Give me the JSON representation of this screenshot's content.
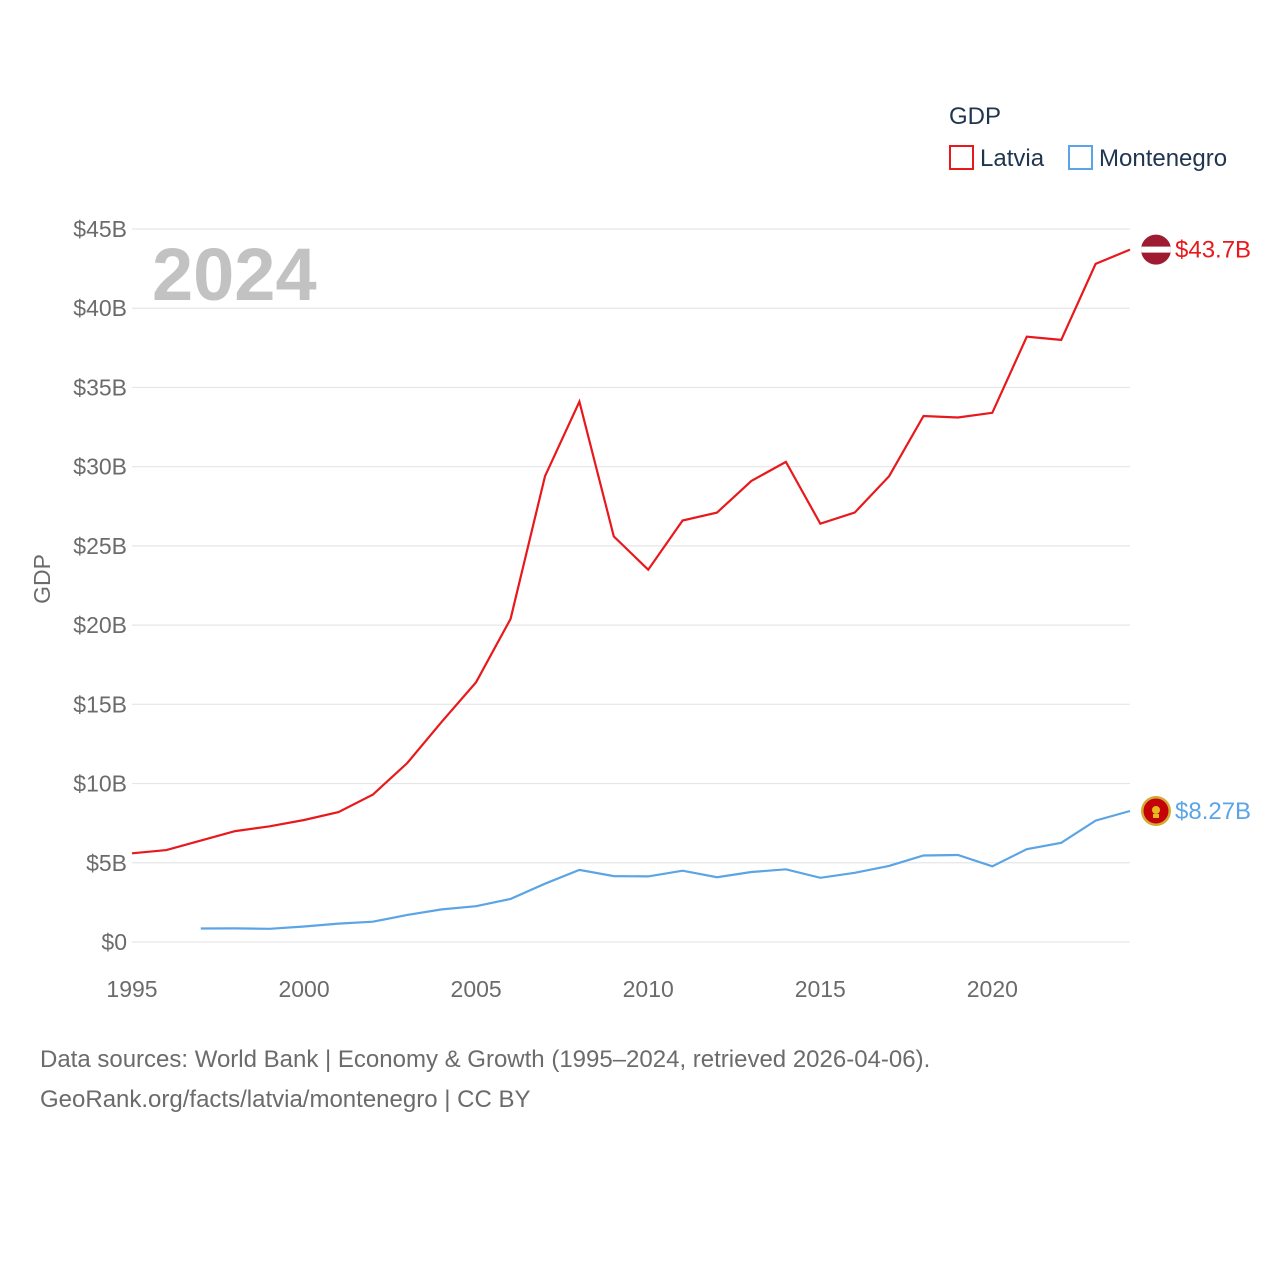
{
  "chart_data": {
    "type": "line",
    "year_label": "2024",
    "ylabel": "GDP",
    "legend_title": "GDP",
    "ylim": [
      0,
      45
    ],
    "xlim": [
      1995,
      2024
    ],
    "yticks": [
      0,
      5,
      10,
      15,
      20,
      25,
      30,
      35,
      40,
      45
    ],
    "ytick_labels": [
      "$0",
      "$5B",
      "$10B",
      "$15B",
      "$20B",
      "$25B",
      "$30B",
      "$35B",
      "$40B",
      "$45B"
    ],
    "xticks": [
      1995,
      2000,
      2005,
      2010,
      2015,
      2020
    ],
    "xtick_labels": [
      "1995",
      "2000",
      "2005",
      "2010",
      "2015",
      "2020"
    ],
    "series": [
      {
        "name": "Latvia",
        "color": "#e8191c",
        "end_label": "$43.7B",
        "x": [
          1995,
          1996,
          1997,
          1998,
          1999,
          2000,
          2001,
          2002,
          2003,
          2004,
          2005,
          2006,
          2007,
          2008,
          2009,
          2010,
          2011,
          2012,
          2013,
          2014,
          2015,
          2016,
          2017,
          2018,
          2019,
          2020,
          2021,
          2022,
          2023,
          2024
        ],
        "values": [
          5.6,
          5.8,
          6.4,
          7.0,
          7.3,
          7.7,
          8.2,
          9.3,
          11.3,
          13.9,
          16.4,
          20.4,
          29.4,
          34.1,
          25.6,
          23.5,
          26.6,
          27.1,
          29.1,
          30.3,
          26.4,
          27.1,
          29.4,
          33.2,
          33.1,
          33.4,
          38.2,
          38.0,
          42.8,
          43.7
        ]
      },
      {
        "name": "Montenegro",
        "color": "#5ba4e6",
        "end_label": "$8.27B",
        "x": [
          1997,
          1998,
          1999,
          2000,
          2001,
          2002,
          2003,
          2004,
          2005,
          2006,
          2007,
          2008,
          2009,
          2010,
          2011,
          2012,
          2013,
          2014,
          2015,
          2016,
          2017,
          2018,
          2019,
          2020,
          2021,
          2022,
          2023,
          2024
        ],
        "values": [
          0.85,
          0.86,
          0.83,
          0.98,
          1.16,
          1.28,
          1.71,
          2.06,
          2.26,
          2.72,
          3.68,
          4.55,
          4.16,
          4.14,
          4.5,
          4.09,
          4.42,
          4.59,
          4.05,
          4.37,
          4.8,
          5.46,
          5.49,
          4.78,
          5.86,
          6.26,
          7.66,
          8.27
        ]
      }
    ]
  },
  "footer": {
    "line1": "Data sources: World Bank | Economy & Growth (1995–2024, retrieved 2026-04-06).",
    "line2": "GeoRank.org/facts/latvia/montenegro | CC BY"
  }
}
